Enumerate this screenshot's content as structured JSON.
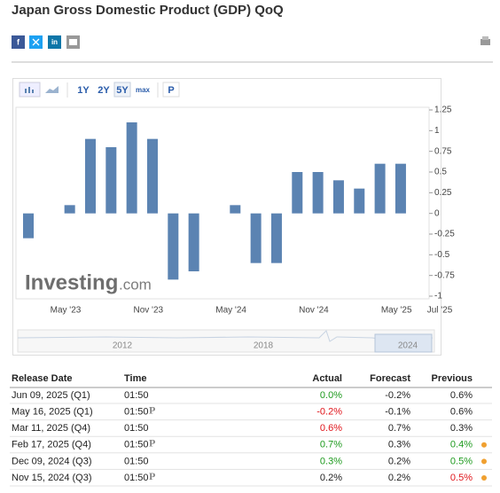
{
  "header": {
    "title": "Japan Gross Domestic Product (GDP) QoQ",
    "share": [
      "f",
      "in"
    ]
  },
  "toolbar": {
    "ranges": [
      "1Y",
      "2Y",
      "5Y",
      "max"
    ],
    "active_range": 2,
    "print": "P"
  },
  "chart_data": {
    "type": "bar",
    "values": [
      -0.3,
      0,
      0.1,
      0.9,
      0.8,
      1.1,
      0.9,
      -0.8,
      -0.7,
      0,
      0.1,
      -0.6,
      -0.6,
      0.5,
      0.5,
      0.4,
      0.3,
      0.6,
      0.6
    ],
    "color": "#5b83b2",
    "xtick_labels": [
      "May '23",
      "Nov '23",
      "May '24",
      "Nov '24",
      "May '25",
      "Jul '25"
    ],
    "ylim": [
      -1,
      1.25
    ],
    "yticks": [
      1.25,
      1,
      0.75,
      0.5,
      0.25,
      0,
      -0.25,
      -0.5,
      -0.75,
      -1
    ],
    "watermark": {
      "brand": "Investing",
      "suffix": ".com"
    }
  },
  "navigator": {
    "labels": [
      "2012",
      "2018",
      "2024"
    ]
  },
  "table": {
    "columns": [
      "Release Date",
      "Time",
      "Actual",
      "Forecast",
      "Previous"
    ],
    "rows": [
      [
        "Jun 09, 2025 (Q1)",
        "01:50",
        "0.0%",
        "-0.2%",
        "0.6%"
      ],
      [
        "May 16, 2025 (Q1)",
        "01:50",
        "-0.2%",
        "-0.1%",
        "0.6%"
      ],
      [
        "Mar 11, 2025 (Q4)",
        "01:50",
        "0.6%",
        "0.7%",
        "0.3%"
      ],
      [
        "Feb 17, 2025 (Q4)",
        "01:50",
        "0.7%",
        "0.3%",
        "0.4%"
      ],
      [
        "Dec 09, 2024 (Q3)",
        "01:50",
        "0.3%",
        "0.2%",
        "0.5%"
      ],
      [
        "Nov 15, 2024 (Q3)",
        "01:50",
        "0.2%",
        "0.2%",
        "0.5%"
      ]
    ],
    "preliminary_mark": "P",
    "preliminary": [
      false,
      true,
      false,
      true,
      false,
      true
    ],
    "actual_colors": [
      "#1d9a1d",
      "#e0151b",
      "#e0151b",
      "#1d9a1d",
      "#1d9a1d",
      "#222222"
    ],
    "previous_colors": [
      "#222222",
      "#222222",
      "#222222",
      "#1d9a1d",
      "#1d9a1d",
      "#e0151b"
    ],
    "revision_dot_color": "#f0a030",
    "revised": [
      false,
      false,
      false,
      true,
      true,
      true
    ]
  }
}
